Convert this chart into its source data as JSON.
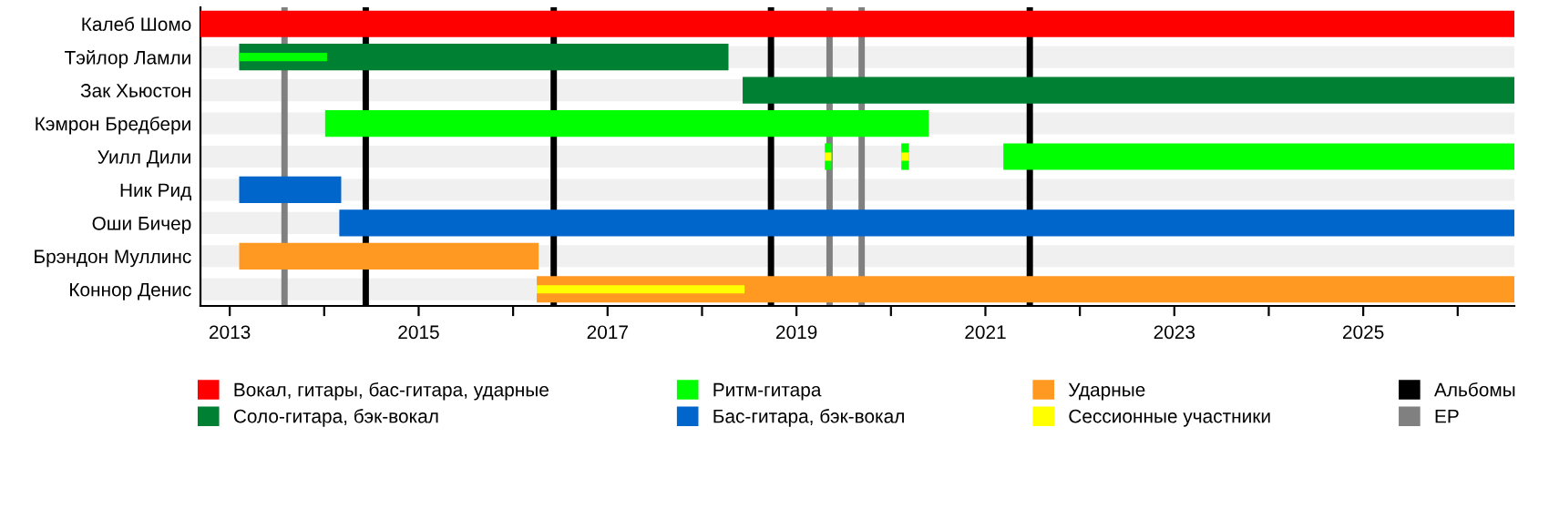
{
  "chart_data": {
    "type": "bar",
    "orientation": "horizontal",
    "legend": "bottom",
    "grid": false,
    "categories": [
      "Калеб Шомо",
      "Тэйлор Ламли",
      "Зак Хьюстон",
      "Кэмрон Бредбери",
      "Уилл Дили",
      "Ник Рид",
      "Оши Бичер",
      "Брэндон Муллинс",
      "Коннор Денис"
    ],
    "xlim": [
      2012.69,
      2026.6
    ],
    "xticks": [
      2013,
      {
        "value": 2014,
        "label": null
      },
      2015,
      {
        "value": 2016,
        "label": null
      },
      2017,
      {
        "value": 2018,
        "label": null
      },
      2019,
      {
        "value": 2020,
        "label": null
      },
      2021,
      {
        "value": 2022,
        "label": null
      },
      2023,
      {
        "value": 2024,
        "label": null
      },
      2025,
      {
        "value": 2026,
        "label": null
      }
    ],
    "series": [
      {
        "name": "Вокал, гитары, бас-гитара, ударные",
        "color": "#ff0000",
        "values": [
          13.91,
          null,
          null,
          null,
          null,
          null,
          null,
          null,
          null
        ],
        "base": [
          2012.69,
          null,
          null,
          null,
          null,
          null,
          null,
          null,
          null
        ]
      },
      {
        "name": "Соло-гитара, бэк-вокал",
        "color": "#008033",
        "values": [
          null,
          5.18,
          8.17,
          null,
          null,
          null,
          null,
          null,
          null
        ],
        "base": [
          null,
          2013.1,
          2018.43,
          null,
          null,
          null,
          null,
          null,
          null
        ]
      },
      {
        "name": "Ритм-гитара",
        "color": "#00ff00",
        "values": [
          null,
          0.93,
          null,
          6.39,
          0.07,
          null,
          null,
          null,
          null
        ],
        "base": [
          null,
          2013.1,
          null,
          2014.01,
          2019.3,
          null,
          null,
          null,
          null
        ]
      },
      {
        "color": "#00ff00",
        "values": [
          null,
          null,
          null,
          null,
          0.08,
          null,
          null,
          null,
          null
        ],
        "base": [
          null,
          null,
          null,
          null,
          2020.11,
          null,
          null,
          null,
          null
        ]
      },
      {
        "color": "#00ff00",
        "values": [
          null,
          null,
          null,
          null,
          5.41,
          null,
          null,
          null,
          null
        ],
        "base": [
          null,
          null,
          null,
          null,
          2021.19,
          null,
          null,
          null,
          null
        ]
      },
      {
        "name": "Бас-гитара, бэк-вокал",
        "color": "#0066cc",
        "values": [
          null,
          null,
          null,
          null,
          null,
          1.08,
          12.44,
          null,
          null
        ],
        "base": [
          null,
          null,
          null,
          null,
          null,
          2013.1,
          2014.16,
          null,
          null
        ]
      },
      {
        "name": "Ударные",
        "color": "#ff9922",
        "values": [
          null,
          null,
          null,
          null,
          null,
          null,
          null,
          3.17,
          10.35
        ],
        "base": [
          null,
          null,
          null,
          null,
          null,
          null,
          null,
          2013.1,
          2016.25
        ]
      },
      {
        "name": "Сессионные участники",
        "color": "#ffff00",
        "values": [
          null,
          null,
          null,
          null,
          0.07,
          null,
          null,
          null,
          2.2
        ],
        "base": [
          null,
          null,
          null,
          null,
          2019.3,
          null,
          null,
          null,
          2016.25
        ]
      },
      {
        "color": "#ffff00",
        "values": [
          null,
          null,
          null,
          null,
          0.08,
          null,
          null,
          null,
          null
        ],
        "base": [
          null,
          null,
          null,
          null,
          2020.11,
          null,
          null,
          null,
          null
        ]
      }
    ],
    "ref_lines": [
      {
        "axis": "x",
        "value": 2014.44,
        "label": "Альбомы",
        "color": "#000000"
      },
      {
        "axis": "x",
        "value": 2016.43,
        "color": "#000000"
      },
      {
        "axis": "x",
        "value": 2018.73,
        "color": "#000000"
      },
      {
        "axis": "x",
        "value": 2021.47,
        "color": "#000000"
      },
      {
        "axis": "x",
        "value": 2013.58,
        "label": "EP",
        "color": "#808080"
      },
      {
        "axis": "x",
        "value": 2019.35,
        "color": "#808080"
      },
      {
        "axis": "x",
        "value": 2019.69,
        "color": "#808080"
      }
    ]
  }
}
